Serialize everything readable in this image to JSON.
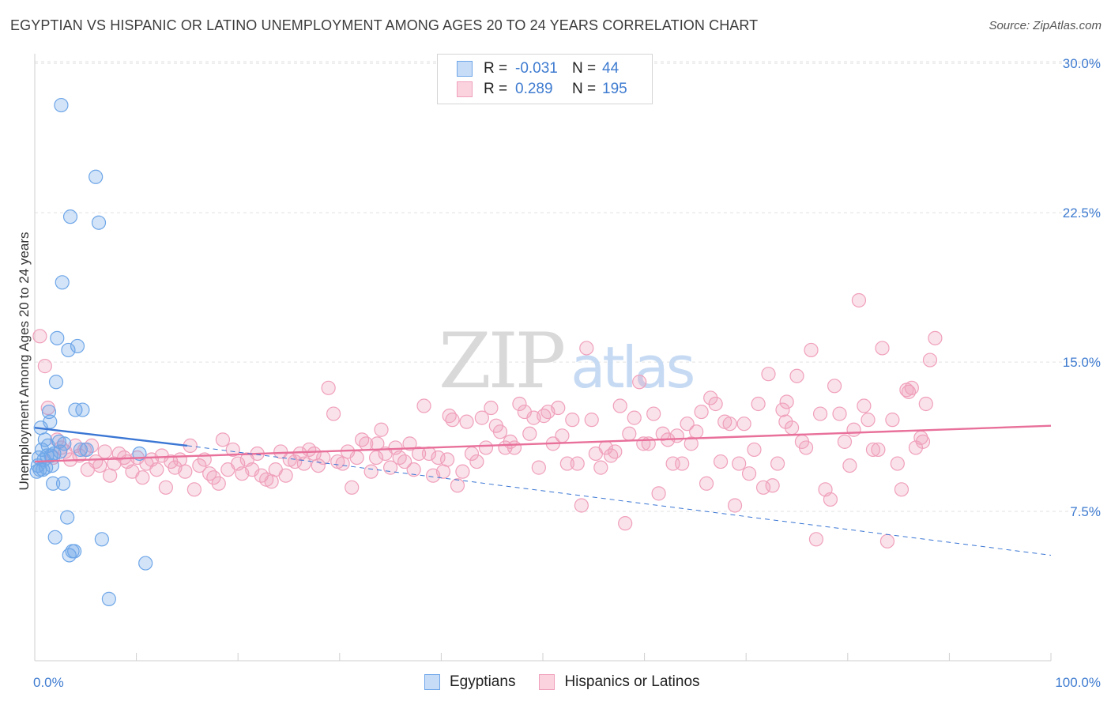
{
  "title": "EGYPTIAN VS HISPANIC OR LATINO UNEMPLOYMENT AMONG AGES 20 TO 24 YEARS CORRELATION CHART",
  "source": "Source: ZipAtlas.com",
  "watermark": "ZIPatlas",
  "legend": {
    "rows": [
      {
        "r_label": "R =",
        "r_value": "-0.031",
        "n_label": "N =",
        "n_value": "44",
        "color": "#6ea6e8"
      },
      {
        "r_label": "R =",
        "r_value": "0.289",
        "n_label": "N =",
        "n_value": "195",
        "color": "#f0a0bb"
      }
    ]
  },
  "bottom_legend": [
    "Egyptians",
    "Hispanics or Latinos"
  ],
  "colors": {
    "blue": "#6ea6e8",
    "blue_line": "#3a76d4",
    "pink": "#f0a0bb",
    "pink_line": "#e8709a",
    "accent_text": "#3e7bd0"
  },
  "chart_data": {
    "type": "scatter",
    "title": "EGYPTIAN VS HISPANIC OR LATINO UNEMPLOYMENT AMONG AGES 20 TO 24 YEARS CORRELATION CHART",
    "xlabel": "",
    "ylabel": "Unemployment Among Ages 20 to 24 years",
    "xlim": [
      0,
      100
    ],
    "ylim": [
      0,
      30.8
    ],
    "x_tick_labels": [
      "0.0%",
      "100.0%"
    ],
    "y_ticks": [
      7.5,
      15.0,
      22.5,
      30.0
    ],
    "y_tick_labels": [
      "7.5%",
      "15.0%",
      "22.5%",
      "30.0%"
    ],
    "grid": true,
    "legend_position": "top-center",
    "series": [
      {
        "name": "Egyptians",
        "points": [
          [
            0.2,
            9.5
          ],
          [
            0.3,
            9.8
          ],
          [
            0.4,
            10.2
          ],
          [
            0.5,
            9.6
          ],
          [
            0.6,
            11.7
          ],
          [
            0.7,
            10.6
          ],
          [
            0.8,
            9.6
          ],
          [
            0.9,
            10.1
          ],
          [
            1.0,
            11.1
          ],
          [
            1.1,
            9.7
          ],
          [
            1.2,
            10.3
          ],
          [
            1.3,
            10.8
          ],
          [
            1.4,
            12.5
          ],
          [
            1.5,
            12.0
          ],
          [
            1.6,
            10.3
          ],
          [
            1.7,
            9.8
          ],
          [
            1.8,
            8.9
          ],
          [
            1.9,
            10.4
          ],
          [
            2.0,
            6.2
          ],
          [
            2.1,
            14.0
          ],
          [
            2.2,
            16.2
          ],
          [
            2.4,
            11.0
          ],
          [
            2.5,
            10.5
          ],
          [
            2.6,
            27.9
          ],
          [
            2.7,
            19.0
          ],
          [
            2.8,
            8.9
          ],
          [
            2.9,
            10.9
          ],
          [
            3.2,
            7.2
          ],
          [
            3.3,
            15.6
          ],
          [
            3.4,
            5.3
          ],
          [
            3.5,
            22.3
          ],
          [
            3.7,
            5.5
          ],
          [
            3.9,
            5.5
          ],
          [
            4.0,
            12.6
          ],
          [
            4.2,
            15.8
          ],
          [
            4.5,
            10.6
          ],
          [
            4.7,
            12.6
          ],
          [
            5.1,
            10.6
          ],
          [
            6.0,
            24.3
          ],
          [
            6.3,
            22.0
          ],
          [
            6.6,
            6.1
          ],
          [
            7.3,
            3.1
          ],
          [
            10.3,
            10.4
          ],
          [
            10.9,
            4.9
          ]
        ],
        "trend": {
          "x": [
            0,
            15
          ],
          "y": [
            11.7,
            10.8
          ]
        },
        "trend_extended": {
          "x": [
            15,
            100
          ],
          "y": [
            10.8,
            5.3
          ]
        }
      },
      {
        "name": "Hispanics or Latinos",
        "points": [
          [
            0.5,
            16.3
          ],
          [
            1.0,
            14.8
          ],
          [
            1.3,
            12.7
          ],
          [
            1.8,
            10.2
          ],
          [
            2.2,
            11.1
          ],
          [
            2.6,
            10.7
          ],
          [
            3.0,
            10.5
          ],
          [
            3.5,
            10.1
          ],
          [
            4.0,
            10.8
          ],
          [
            4.4,
            10.3
          ],
          [
            4.9,
            10.6
          ],
          [
            5.2,
            9.6
          ],
          [
            5.6,
            10.8
          ],
          [
            6.0,
            10.0
          ],
          [
            6.4,
            9.8
          ],
          [
            6.9,
            10.5
          ],
          [
            7.4,
            9.3
          ],
          [
            7.8,
            9.9
          ],
          [
            8.3,
            10.4
          ],
          [
            8.8,
            10.2
          ],
          [
            9.1,
            10.0
          ],
          [
            9.6,
            9.5
          ],
          [
            10.1,
            10.2
          ],
          [
            10.6,
            9.2
          ],
          [
            11.0,
            9.9
          ],
          [
            11.5,
            10.1
          ],
          [
            12.0,
            9.6
          ],
          [
            12.5,
            10.3
          ],
          [
            12.9,
            8.7
          ],
          [
            13.4,
            10.0
          ],
          [
            13.8,
            9.7
          ],
          [
            14.3,
            10.1
          ],
          [
            14.8,
            9.5
          ],
          [
            15.3,
            10.8
          ],
          [
            15.7,
            8.6
          ],
          [
            16.2,
            9.8
          ],
          [
            16.7,
            10.1
          ],
          [
            17.2,
            9.4
          ],
          [
            17.6,
            9.2
          ],
          [
            18.1,
            8.9
          ],
          [
            18.5,
            11.1
          ],
          [
            19.0,
            9.6
          ],
          [
            19.5,
            10.6
          ],
          [
            20.0,
            9.9
          ],
          [
            20.4,
            9.4
          ],
          [
            20.9,
            10.1
          ],
          [
            21.4,
            9.6
          ],
          [
            21.9,
            10.4
          ],
          [
            22.3,
            9.3
          ],
          [
            22.8,
            9.1
          ],
          [
            23.3,
            9.0
          ],
          [
            23.7,
            9.6
          ],
          [
            24.2,
            10.5
          ],
          [
            24.7,
            9.3
          ],
          [
            25.1,
            10.1
          ],
          [
            25.6,
            10.0
          ],
          [
            26.1,
            10.4
          ],
          [
            26.5,
            9.9
          ],
          [
            27.0,
            10.6
          ],
          [
            27.5,
            10.4
          ],
          [
            27.9,
            9.8
          ],
          [
            28.4,
            10.2
          ],
          [
            28.9,
            13.7
          ],
          [
            29.4,
            12.4
          ],
          [
            29.8,
            10.0
          ],
          [
            30.3,
            9.9
          ],
          [
            30.8,
            10.5
          ],
          [
            31.2,
            8.7
          ],
          [
            31.7,
            10.2
          ],
          [
            32.2,
            11.1
          ],
          [
            32.6,
            10.9
          ],
          [
            33.1,
            9.5
          ],
          [
            33.6,
            10.2
          ],
          [
            34.1,
            11.6
          ],
          [
            34.5,
            10.4
          ],
          [
            35.0,
            9.7
          ],
          [
            35.5,
            10.7
          ],
          [
            35.9,
            10.2
          ],
          [
            36.4,
            10.0
          ],
          [
            36.9,
            10.9
          ],
          [
            37.3,
            9.6
          ],
          [
            37.8,
            10.4
          ],
          [
            38.3,
            12.8
          ],
          [
            38.8,
            10.4
          ],
          [
            39.2,
            9.3
          ],
          [
            39.7,
            10.2
          ],
          [
            40.2,
            9.5
          ],
          [
            40.6,
            10.1
          ],
          [
            41.1,
            12.1
          ],
          [
            41.6,
            8.8
          ],
          [
            42.1,
            9.5
          ],
          [
            42.5,
            12.0
          ],
          [
            43.0,
            10.4
          ],
          [
            43.5,
            10.0
          ],
          [
            44.0,
            12.2
          ],
          [
            44.4,
            10.7
          ],
          [
            44.9,
            12.7
          ],
          [
            45.4,
            11.8
          ],
          [
            45.8,
            11.5
          ],
          [
            46.3,
            10.7
          ],
          [
            46.8,
            11.0
          ],
          [
            47.2,
            10.7
          ],
          [
            47.7,
            12.9
          ],
          [
            48.2,
            12.5
          ],
          [
            48.7,
            11.4
          ],
          [
            49.1,
            12.2
          ],
          [
            49.6,
            9.7
          ],
          [
            50.1,
            12.3
          ],
          [
            50.5,
            12.5
          ],
          [
            51.0,
            10.9
          ],
          [
            51.5,
            12.7
          ],
          [
            51.9,
            11.3
          ],
          [
            52.4,
            9.9
          ],
          [
            52.9,
            12.1
          ],
          [
            53.4,
            9.9
          ],
          [
            53.8,
            7.8
          ],
          [
            54.3,
            15.7
          ],
          [
            54.8,
            12.1
          ],
          [
            55.2,
            10.4
          ],
          [
            55.7,
            9.7
          ],
          [
            56.2,
            10.7
          ],
          [
            56.7,
            10.3
          ],
          [
            57.1,
            10.5
          ],
          [
            57.6,
            12.8
          ],
          [
            58.1,
            6.9
          ],
          [
            58.5,
            11.4
          ],
          [
            59.0,
            12.2
          ],
          [
            59.5,
            14.0
          ],
          [
            59.9,
            10.9
          ],
          [
            60.4,
            10.9
          ],
          [
            60.9,
            12.4
          ],
          [
            61.4,
            8.4
          ],
          [
            61.8,
            11.4
          ],
          [
            62.3,
            11.1
          ],
          [
            62.8,
            9.9
          ],
          [
            63.2,
            11.3
          ],
          [
            63.7,
            9.9
          ],
          [
            64.2,
            11.9
          ],
          [
            64.6,
            10.9
          ],
          [
            65.1,
            11.5
          ],
          [
            65.6,
            12.5
          ],
          [
            66.1,
            8.9
          ],
          [
            66.5,
            13.2
          ],
          [
            67.0,
            12.9
          ],
          [
            67.5,
            10.0
          ],
          [
            67.9,
            12.0
          ],
          [
            68.4,
            11.9
          ],
          [
            68.9,
            7.8
          ],
          [
            69.3,
            9.9
          ],
          [
            69.8,
            11.9
          ],
          [
            70.3,
            9.4
          ],
          [
            70.8,
            10.6
          ],
          [
            71.2,
            12.9
          ],
          [
            71.7,
            8.7
          ],
          [
            72.2,
            14.4
          ],
          [
            72.6,
            8.8
          ],
          [
            73.1,
            9.9
          ],
          [
            73.6,
            12.6
          ],
          [
            74.0,
            13.0
          ],
          [
            74.5,
            11.7
          ],
          [
            75.0,
            14.3
          ],
          [
            75.5,
            11.0
          ],
          [
            75.9,
            10.7
          ],
          [
            76.4,
            15.6
          ],
          [
            76.9,
            6.1
          ],
          [
            77.3,
            12.4
          ],
          [
            77.8,
            8.6
          ],
          [
            78.3,
            8.1
          ],
          [
            78.7,
            13.8
          ],
          [
            79.2,
            12.4
          ],
          [
            79.7,
            11.0
          ],
          [
            80.2,
            9.8
          ],
          [
            80.6,
            11.6
          ],
          [
            81.1,
            18.1
          ],
          [
            81.6,
            12.8
          ],
          [
            82.0,
            12.1
          ],
          [
            82.5,
            10.6
          ],
          [
            83.0,
            10.6
          ],
          [
            83.4,
            15.7
          ],
          [
            83.9,
            6.0
          ],
          [
            84.4,
            12.1
          ],
          [
            84.9,
            9.9
          ],
          [
            85.3,
            8.6
          ],
          [
            85.8,
            13.6
          ],
          [
            86.3,
            13.7
          ],
          [
            86.7,
            10.7
          ],
          [
            87.2,
            11.2
          ],
          [
            87.7,
            12.9
          ],
          [
            88.1,
            15.1
          ],
          [
            88.6,
            16.2
          ],
          [
            87.4,
            11.0
          ],
          [
            86.0,
            13.5
          ],
          [
            73.9,
            12.0
          ],
          [
            40.8,
            12.3
          ],
          [
            33.7,
            10.9
          ]
        ],
        "trend": {
          "x": [
            0,
            100
          ],
          "y": [
            10.0,
            11.8
          ]
        }
      }
    ]
  }
}
